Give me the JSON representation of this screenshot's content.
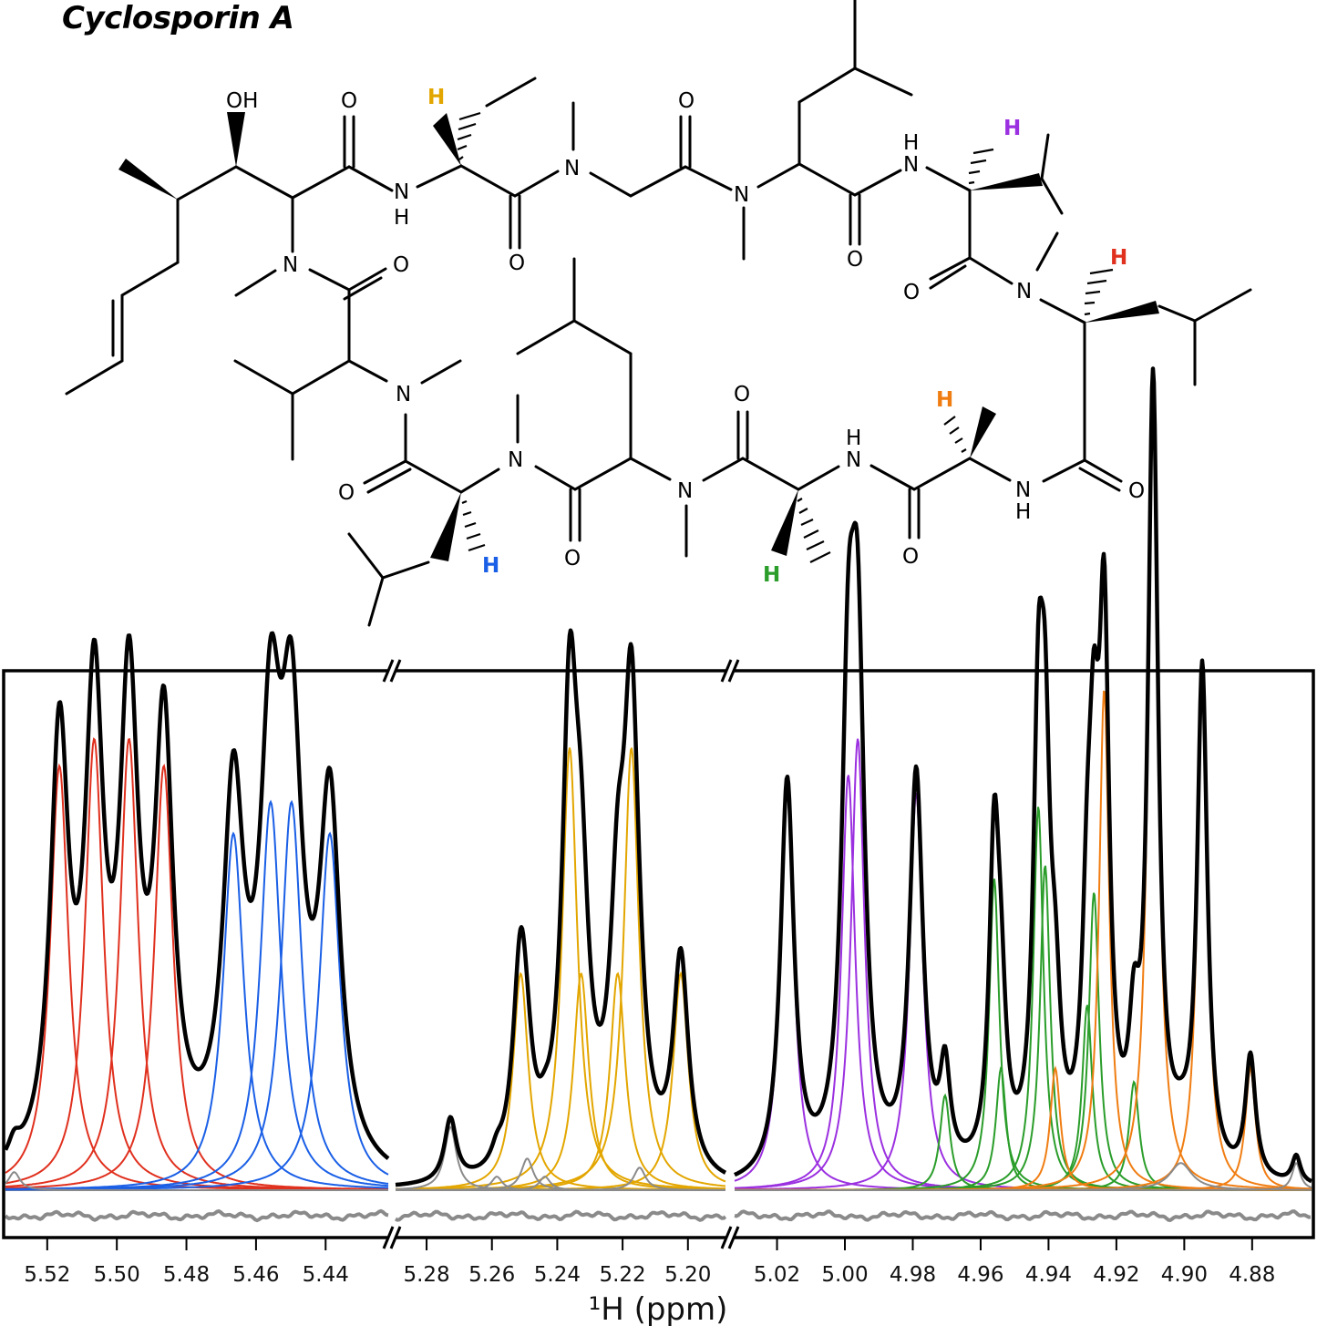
{
  "molecule": {
    "name": "Cyclosporin A",
    "atoms": {
      "o": "O",
      "n": "N",
      "h": "H",
      "oh": "OH"
    },
    "highlight_colors": {
      "red": "#e0301e",
      "blue": "#1a5fe6",
      "gold": "#e3a600",
      "purple": "#9b30e0",
      "green": "#2a9d2a",
      "orange": "#f07d12"
    }
  },
  "chart_data": {
    "type": "line",
    "title": "",
    "xlabel": "¹H (ppm)",
    "ylabel": "",
    "x_reversed": true,
    "grid": false,
    "legend": "none",
    "ylim": [
      0,
      1.08
    ],
    "axis_break": "//",
    "panels": [
      {
        "name": "5.44-5.52",
        "xlim": [
          5.532,
          5.422
        ],
        "ticks": [
          5.52,
          5.5,
          5.48,
          5.46,
          5.44
        ],
        "tick_labels": [
          "5.52",
          "5.50",
          "5.48",
          "5.46",
          "5.44"
        ],
        "peaks": [
          {
            "group": "red",
            "x": 5.5165,
            "h": 0.94,
            "w": 0.0032
          },
          {
            "group": "red",
            "x": 5.5065,
            "h": 1.0,
            "w": 0.0032
          },
          {
            "group": "red",
            "x": 5.4965,
            "h": 1.0,
            "w": 0.0032
          },
          {
            "group": "red",
            "x": 5.4865,
            "h": 0.94,
            "w": 0.0032
          },
          {
            "group": "blue",
            "x": 5.4665,
            "h": 0.79,
            "w": 0.0036
          },
          {
            "group": "blue",
            "x": 5.4558,
            "h": 0.86,
            "w": 0.0036
          },
          {
            "group": "blue",
            "x": 5.4498,
            "h": 0.86,
            "w": 0.0036
          },
          {
            "group": "blue",
            "x": 5.4388,
            "h": 0.79,
            "w": 0.0036
          },
          {
            "group": "gray",
            "x": 5.5295,
            "h": 0.04,
            "w": 0.002
          }
        ]
      },
      {
        "name": "5.20-5.28",
        "xlim": [
          5.2895,
          5.1885
        ],
        "ticks": [
          5.28,
          5.26,
          5.24,
          5.22,
          5.2
        ],
        "tick_labels": [
          "5.28",
          "5.26",
          "5.24",
          "5.22",
          "5.20"
        ],
        "peaks": [
          {
            "group": "gold",
            "x": 5.2512,
            "h": 0.48,
            "w": 0.0028
          },
          {
            "group": "gold",
            "x": 5.2362,
            "h": 0.98,
            "w": 0.0028
          },
          {
            "group": "gold",
            "x": 5.2327,
            "h": 0.48,
            "w": 0.0028
          },
          {
            "group": "gold",
            "x": 5.2215,
            "h": 0.48,
            "w": 0.0028
          },
          {
            "group": "gold",
            "x": 5.2173,
            "h": 0.98,
            "w": 0.0028
          },
          {
            "group": "gold",
            "x": 5.2022,
            "h": 0.48,
            "w": 0.0028
          },
          {
            "group": "gray",
            "x": 5.2727,
            "h": 0.14,
            "w": 0.0022
          },
          {
            "group": "gray",
            "x": 5.2585,
            "h": 0.03,
            "w": 0.002
          },
          {
            "group": "gray",
            "x": 5.2492,
            "h": 0.07,
            "w": 0.0022
          },
          {
            "group": "gray",
            "x": 5.2438,
            "h": 0.03,
            "w": 0.002
          },
          {
            "group": "gray",
            "x": 5.2148,
            "h": 0.05,
            "w": 0.0022
          }
        ]
      },
      {
        "name": "4.88-5.02",
        "xlim": [
          5.0325,
          4.8625
        ],
        "ticks": [
          5.02,
          5.0,
          4.98,
          4.96,
          4.94,
          4.92,
          4.9,
          4.88
        ],
        "tick_labels": [
          "5.02",
          "5.00",
          "4.98",
          "4.96",
          "4.94",
          "4.92",
          "4.90",
          "4.88"
        ],
        "peaks": [
          {
            "group": "purple",
            "x": 5.017,
            "h": 0.88,
            "w": 0.0024
          },
          {
            "group": "purple",
            "x": 4.999,
            "h": 0.92,
            "w": 0.0024
          },
          {
            "group": "purple",
            "x": 4.9962,
            "h": 1.0,
            "w": 0.0024
          },
          {
            "group": "purple",
            "x": 4.979,
            "h": 0.88,
            "w": 0.0024
          },
          {
            "group": "green",
            "x": 4.9705,
            "h": 0.21,
            "w": 0.0018
          },
          {
            "group": "green",
            "x": 4.956,
            "h": 0.69,
            "w": 0.0018
          },
          {
            "group": "green",
            "x": 4.954,
            "h": 0.27,
            "w": 0.0018
          },
          {
            "group": "green",
            "x": 4.943,
            "h": 0.85,
            "w": 0.0018
          },
          {
            "group": "green",
            "x": 4.941,
            "h": 0.72,
            "w": 0.0018
          },
          {
            "group": "green",
            "x": 4.9286,
            "h": 0.41,
            "w": 0.0018
          },
          {
            "group": "green",
            "x": 4.9266,
            "h": 0.66,
            "w": 0.0018
          },
          {
            "group": "green",
            "x": 4.9148,
            "h": 0.24,
            "w": 0.0018
          },
          {
            "group": "orange",
            "x": 4.938,
            "h": 0.27,
            "w": 0.0018
          },
          {
            "group": "orange",
            "x": 4.9236,
            "h": 1.11,
            "w": 0.0018
          },
          {
            "group": "orange",
            "x": 4.9092,
            "h": 1.73,
            "w": 0.0018
          },
          {
            "group": "orange",
            "x": 4.8947,
            "h": 1.11,
            "w": 0.0018
          },
          {
            "group": "orange",
            "x": 4.8805,
            "h": 0.27,
            "w": 0.0018
          },
          {
            "group": "gray",
            "x": 4.901,
            "h": 0.06,
            "w": 0.004
          },
          {
            "group": "gray",
            "x": 4.867,
            "h": 0.06,
            "w": 0.0015
          }
        ]
      }
    ]
  }
}
